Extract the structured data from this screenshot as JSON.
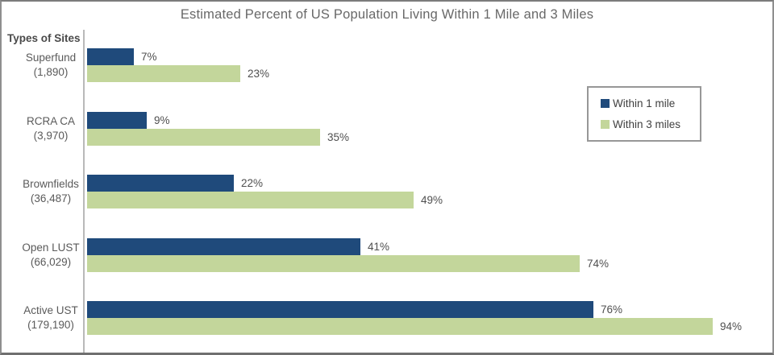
{
  "chart_data": {
    "type": "bar",
    "orientation": "horizontal",
    "title": "Estimated Percent of US Population Living Within 1 Mile and 3 Miles",
    "axis_title": "Types of Sites",
    "categories": [
      "Superfund",
      "RCRA CA",
      "Brownfields",
      "Open LUST",
      "Active UST"
    ],
    "category_counts": [
      "(1,890)",
      "(3,970)",
      "(36,487)",
      "(66,029)",
      "(179,190)"
    ],
    "series": [
      {
        "name": "Within 1 mile",
        "color": "#1F4A7B",
        "values": [
          7,
          9,
          22,
          41,
          76
        ]
      },
      {
        "name": "Within 3 miles",
        "color": "#C3D69B",
        "values": [
          23,
          35,
          49,
          74,
          94
        ]
      }
    ],
    "value_suffix": "%",
    "xlim": [
      0,
      100
    ],
    "grid": false,
    "legend_position": "right",
    "colors": {
      "within_1_mile": "#1F4A7B",
      "within_3_miles": "#C3D69B",
      "axis_line": "#B9B9B9",
      "frame_border": "#8F8F8F",
      "title_text": "#686868",
      "label_text": "#5A5A5A"
    }
  }
}
